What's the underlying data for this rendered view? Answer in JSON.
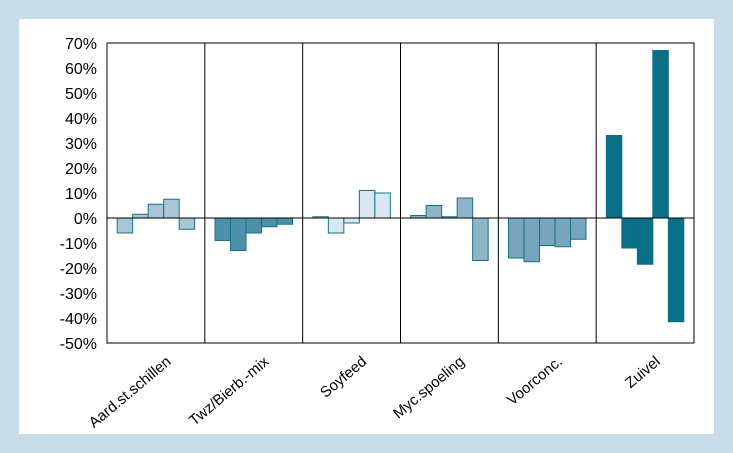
{
  "chart_data": {
    "type": "bar",
    "title": "",
    "xlabel": "",
    "ylabel": "",
    "ylim": [
      -50,
      70
    ],
    "y_ticks": [
      "70%",
      "60%",
      "50%",
      "40%",
      "30%",
      "20%",
      "10%",
      "0%",
      "-10%",
      "-20%",
      "-30%",
      "-40%",
      "-50%"
    ],
    "grid": false,
    "categories": [
      "Aard.st.schillen",
      "Twz/Bierb.-mix",
      "Soyfeed",
      "Myc.spoeling",
      "Voorconc.",
      "Zuivel"
    ],
    "groups": [
      {
        "category": "Aard.st.schillen",
        "values": [
          -6,
          1.5,
          5.5,
          7.5,
          -4.5
        ],
        "fill": "#a9c6d6",
        "stroke": "#16708a"
      },
      {
        "category": "Twz/Bierb.-mix",
        "values": [
          -9,
          -13,
          -6,
          -3.5,
          -2.5
        ],
        "fill": "#4d91a8",
        "stroke": "#16708a"
      },
      {
        "category": "Soyfeed",
        "values": [
          0.5,
          -6,
          -2,
          11,
          10
        ],
        "fill": "#dbe7ef",
        "stroke": "#16708a"
      },
      {
        "category": "Myc.spoeling",
        "values": [
          1,
          5,
          0.5,
          8,
          -17
        ],
        "fill": "#8fb4c7",
        "stroke": "#16708a"
      },
      {
        "category": "Voorconc.",
        "values": [
          -16,
          -17.5,
          -11,
          -11.5,
          -8.5
        ],
        "fill": "#77a5bb",
        "stroke": "#16708a"
      },
      {
        "category": "Zuivel",
        "values": [
          33,
          -12,
          -18.5,
          67,
          -41.5
        ],
        "fill": "#0b6f88",
        "stroke": "#0b6f88"
      }
    ]
  }
}
